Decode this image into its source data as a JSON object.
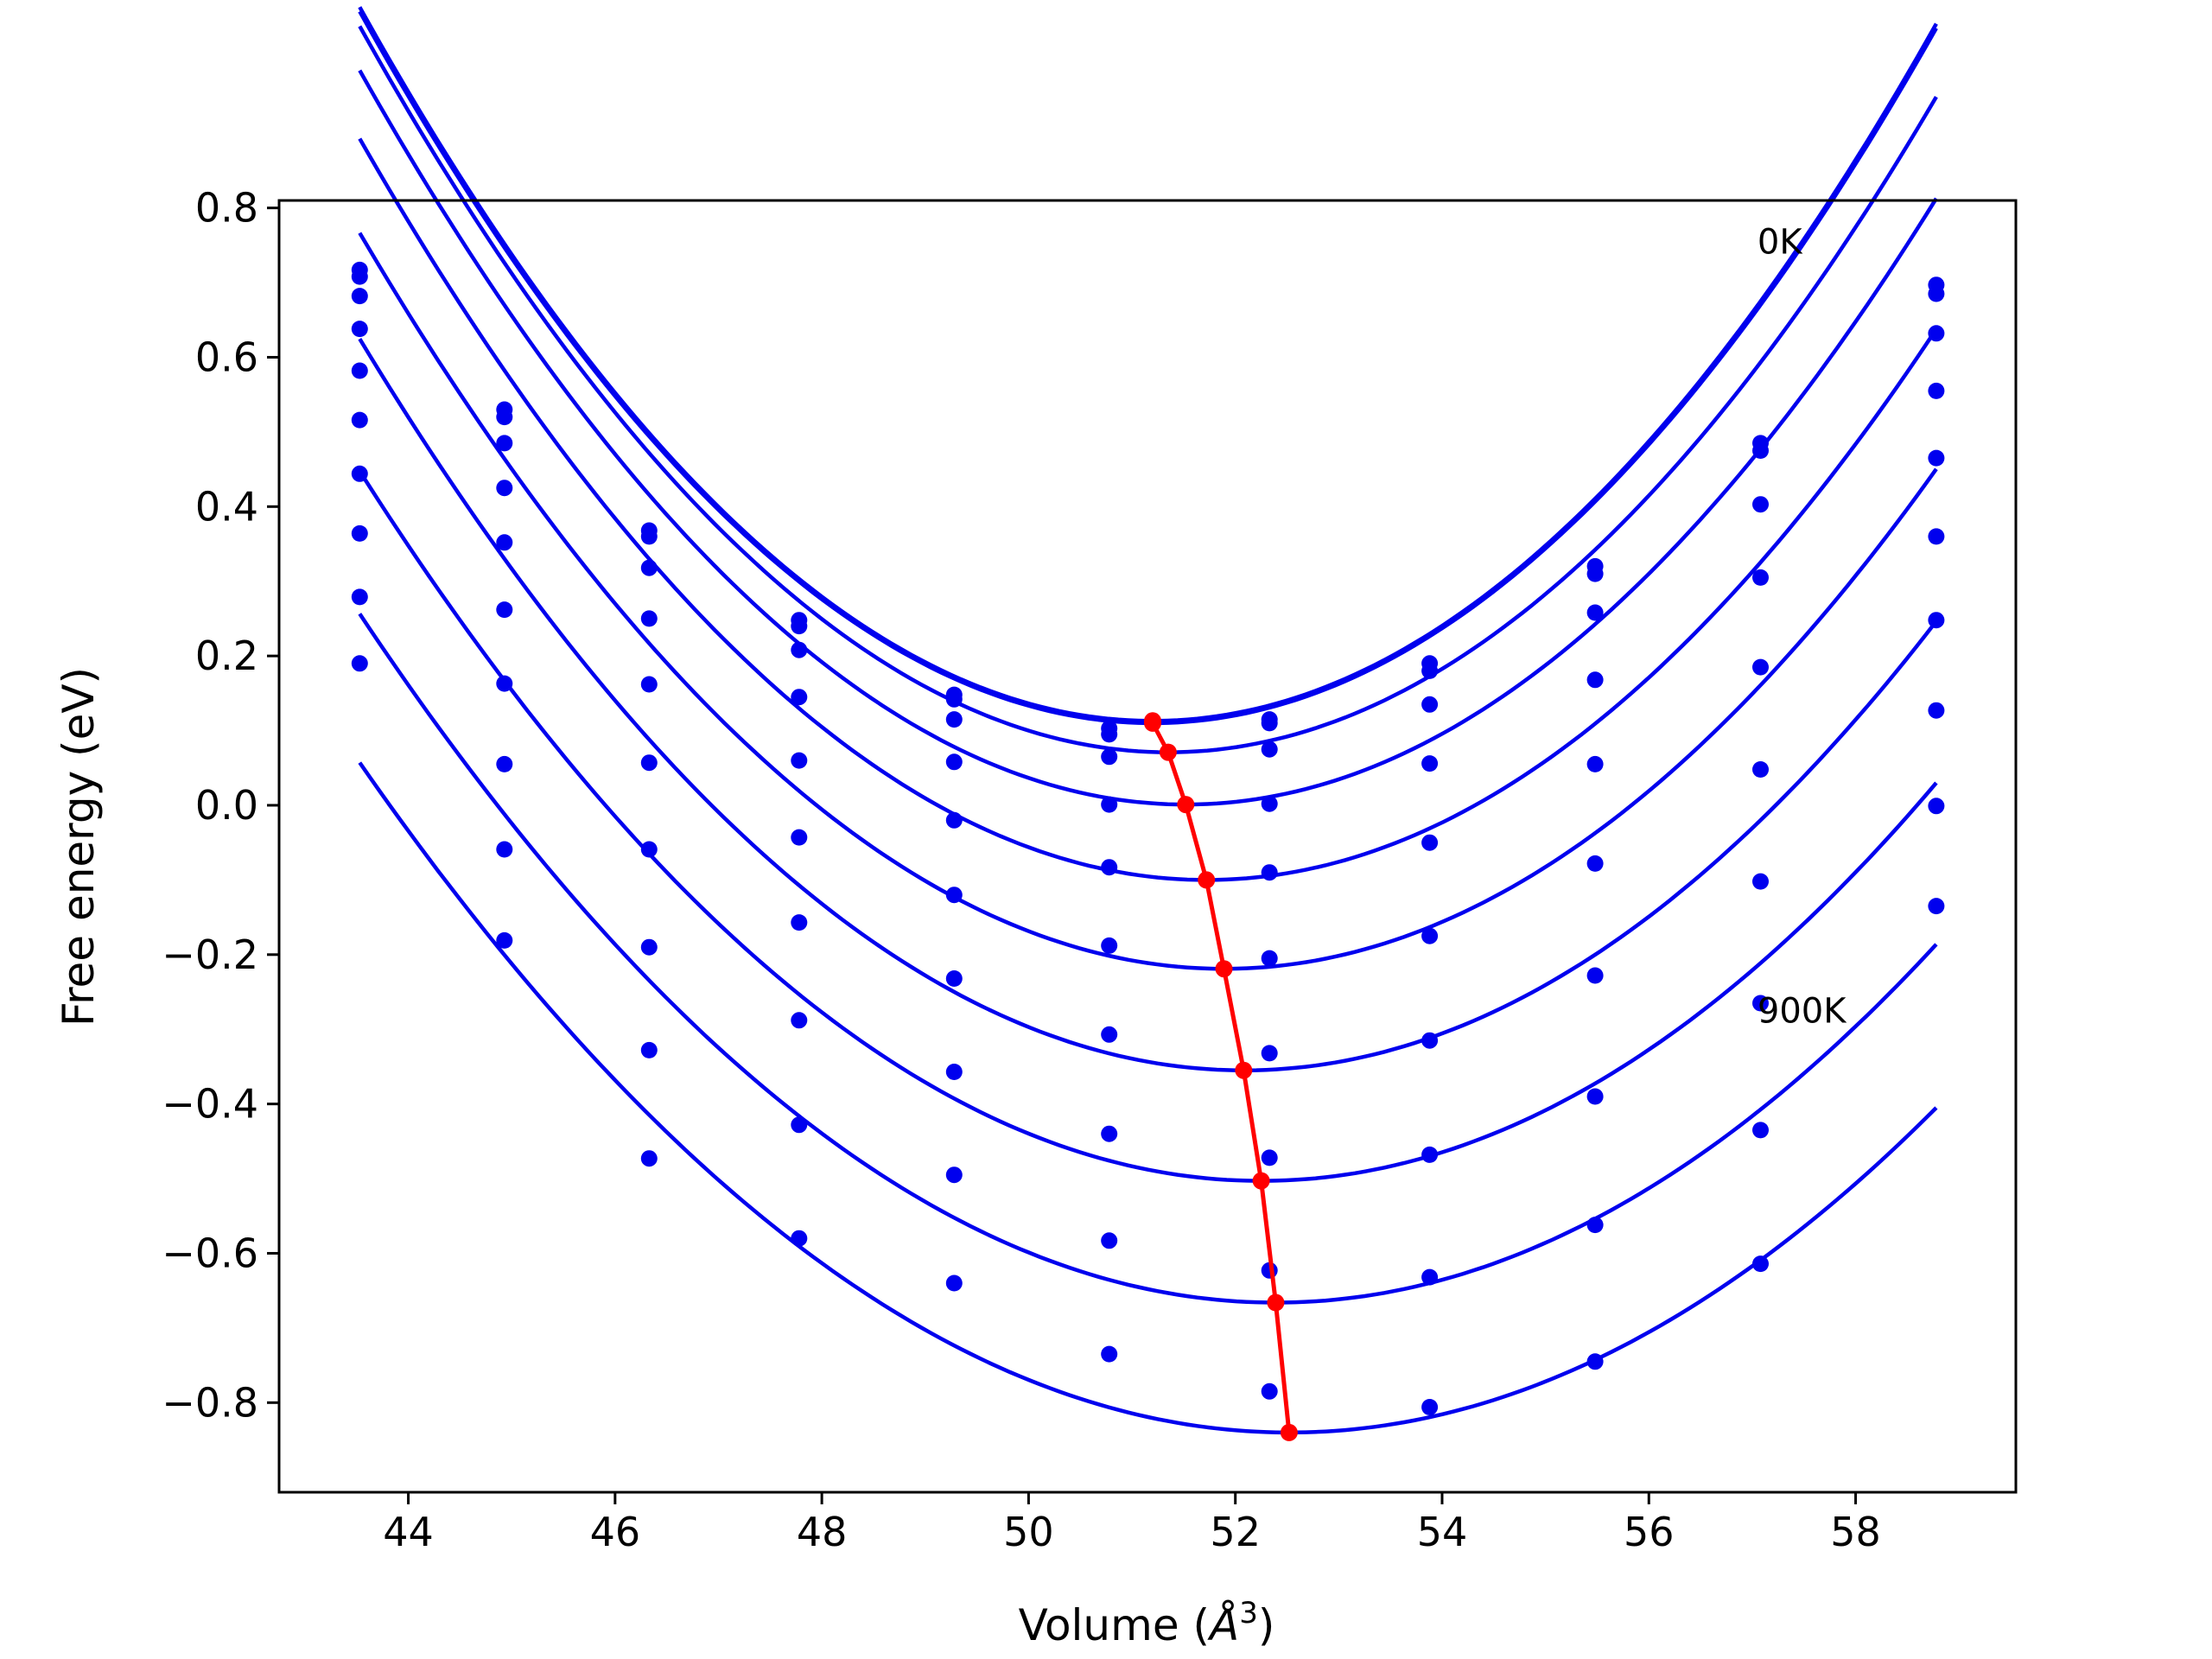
{
  "chart_data": {
    "type": "scatter",
    "title": "",
    "xlabel": "Volume (",
    "xlabel_unit": "Å",
    "xlabel_exp": "3",
    "xlabel_close": ")",
    "ylabel": "Free energy (eV)",
    "xlim": [
      42.75,
      59.55
    ],
    "ylim": [
      -0.92,
      0.81
    ],
    "xticks": [
      44,
      46,
      48,
      50,
      52,
      54,
      56,
      58
    ],
    "xtick_labels": [
      "44",
      "46",
      "48",
      "50",
      "52",
      "54",
      "56",
      "58"
    ],
    "yticks": [
      -0.8,
      -0.6,
      -0.4,
      -0.2,
      0.0,
      0.2,
      0.4,
      0.6,
      0.8
    ],
    "ytick_labels": [
      "−0.8",
      "−0.6",
      "−0.4",
      "−0.2",
      "0.0",
      "0.2",
      "0.4",
      "0.6",
      "0.8"
    ],
    "grid": false,
    "colors": {
      "data": "#0000ee",
      "minimum": "#ff0000",
      "frame": "#000000"
    },
    "x": [
      43.53,
      44.93,
      46.33,
      47.78,
      49.28,
      50.78,
      52.33,
      53.88,
      55.48,
      57.08,
      58.78
    ],
    "series": [
      {
        "temperature_index": 0,
        "points": [
          0.717,
          0.53,
          0.368,
          0.248,
          0.148,
          0.103,
          0.115,
          0.19,
          0.32,
          0.485,
          0.697
        ]
      },
      {
        "temperature_index": 1,
        "points": [
          0.708,
          0.52,
          0.36,
          0.24,
          0.142,
          0.095,
          0.11,
          0.18,
          0.31,
          0.475,
          0.685
        ]
      },
      {
        "temperature_index": 2,
        "points": [
          0.682,
          0.485,
          0.318,
          0.208,
          0.115,
          0.065,
          0.075,
          0.135,
          0.258,
          0.403,
          0.632
        ]
      },
      {
        "temperature_index": 3,
        "points": [
          0.638,
          0.425,
          0.25,
          0.145,
          0.058,
          0.001,
          0.002,
          0.056,
          0.168,
          0.305,
          0.555
        ]
      },
      {
        "temperature_index": 4,
        "points": [
          0.582,
          0.352,
          0.162,
          0.06,
          -0.02,
          -0.083,
          -0.09,
          -0.05,
          0.055,
          0.185,
          0.465
        ]
      },
      {
        "temperature_index": 5,
        "points": [
          0.516,
          0.262,
          0.057,
          -0.043,
          -0.12,
          -0.188,
          -0.205,
          -0.175,
          -0.078,
          0.048,
          0.36
        ]
      },
      {
        "temperature_index": 6,
        "points": [
          0.444,
          0.163,
          -0.059,
          -0.157,
          -0.232,
          -0.307,
          -0.332,
          -0.315,
          -0.228,
          -0.102,
          0.248
        ]
      },
      {
        "temperature_index": 7,
        "points": [
          0.364,
          0.055,
          -0.19,
          -0.288,
          -0.357,
          -0.44,
          -0.472,
          -0.468,
          -0.39,
          -0.265,
          0.127
        ]
      },
      {
        "temperature_index": 8,
        "points": [
          0.279,
          -0.059,
          -0.328,
          -0.428,
          -0.495,
          -0.583,
          -0.623,
          -0.632,
          -0.562,
          -0.435,
          -0.001
        ]
      },
      {
        "temperature_index": 9,
        "points": [
          0.19,
          -0.181,
          -0.473,
          -0.58,
          -0.64,
          -0.735,
          -0.785,
          -0.806,
          -0.745,
          -0.614,
          -0.135
        ]
      }
    ],
    "fits": [
      {
        "vmin": 51.2,
        "fmin": 0.113,
        "k": 0.01625,
        "c": 0.0
      },
      {
        "vmin": 51.2,
        "fmin": 0.11,
        "k": 0.0162,
        "c": 0.0
      },
      {
        "vmin": 51.35,
        "fmin": 0.071,
        "k": 0.0159,
        "c": 0.0
      },
      {
        "vmin": 51.52,
        "fmin": 0.001,
        "k": 0.0154,
        "c": 0.0
      },
      {
        "vmin": 51.72,
        "fmin": -0.1,
        "k": 0.0148,
        "c": 0.0
      },
      {
        "vmin": 51.89,
        "fmin": -0.219,
        "k": 0.0141,
        "c": 0.0
      },
      {
        "vmin": 52.08,
        "fmin": -0.355,
        "k": 0.0134,
        "c": 0.0
      },
      {
        "vmin": 52.25,
        "fmin": -0.503,
        "k": 0.0125,
        "c": 0.0
      },
      {
        "vmin": 52.39,
        "fmin": -0.666,
        "k": 0.01175,
        "c": 0.0
      },
      {
        "vmin": 52.52,
        "fmin": -0.84,
        "k": 0.0111,
        "c": 0.0
      }
    ],
    "fit_range": [
      43.53,
      58.78
    ],
    "minima": {
      "x": [
        51.2,
        51.2,
        51.35,
        51.52,
        51.72,
        51.89,
        52.08,
        52.25,
        52.39,
        52.52
      ],
      "y": [
        0.113,
        0.11,
        0.071,
        0.001,
        -0.1,
        -0.219,
        -0.355,
        -0.503,
        -0.666,
        -0.84
      ]
    },
    "annotations": [
      {
        "text": "0K",
        "x": 57.05,
        "y": 0.755
      },
      {
        "text": "900K",
        "x": 57.05,
        "y": -0.275
      }
    ]
  }
}
